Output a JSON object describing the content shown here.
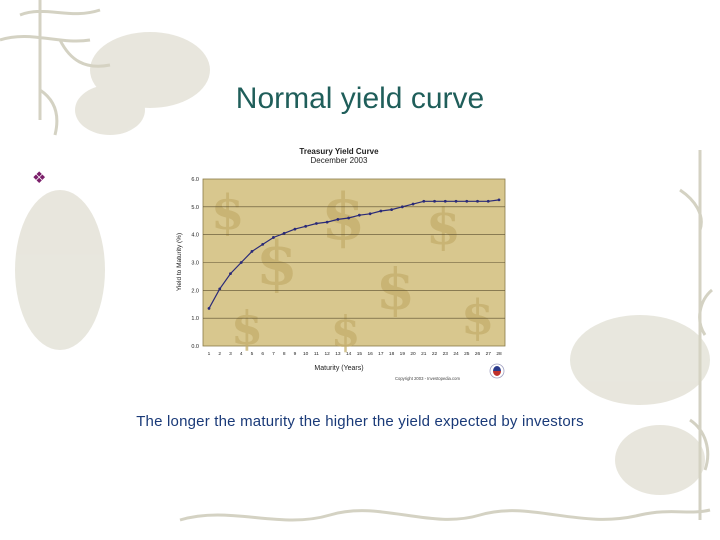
{
  "slide": {
    "title": "Normal yield curve",
    "bullet_symbol": "❖",
    "caption": "The longer the maturity the higher the yield expected by investors"
  },
  "colors": {
    "title": "#1f5e5a",
    "caption": "#1a3a78",
    "bullet": "#7b1f6a",
    "plot_background": "#d8c78e",
    "line": "#2a2a78",
    "ornament": "#c8c6b4"
  },
  "chart_data": {
    "type": "line",
    "title": "Treasury Yield Curve",
    "subtitle": "December 2003",
    "xlabel": "Maturity (Years)",
    "ylabel": "Yield to Maturity (%)",
    "categories": [
      "1",
      "2",
      "3",
      "4",
      "5",
      "6",
      "7",
      "8",
      "9",
      "10",
      "11",
      "12",
      "13",
      "14",
      "15",
      "16",
      "17",
      "18",
      "19",
      "20",
      "21",
      "22",
      "23",
      "24",
      "25",
      "26",
      "27",
      "28"
    ],
    "values": [
      1.35,
      2.05,
      2.6,
      3.0,
      3.4,
      3.65,
      3.9,
      4.05,
      4.2,
      4.3,
      4.4,
      4.45,
      4.55,
      4.6,
      4.7,
      4.75,
      4.85,
      4.9,
      5.0,
      5.1,
      5.2,
      5.2,
      5.2,
      5.2,
      5.2,
      5.2,
      5.2,
      5.25
    ],
    "y_ticks": [
      "0.0",
      "1.0",
      "2.0",
      "3.0",
      "4.0",
      "5.0",
      "6.0"
    ],
    "ylim": [
      0,
      6
    ],
    "grid": true,
    "legend": "none",
    "copyright": "Copyright 2003 - Investopedia.com"
  }
}
